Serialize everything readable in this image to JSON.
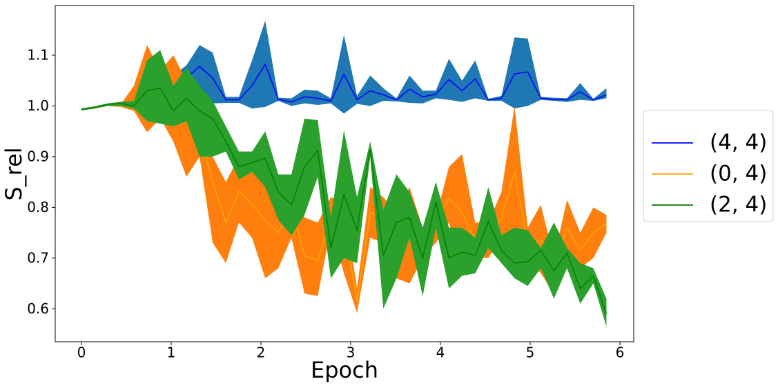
{
  "chart_data": {
    "type": "line_band",
    "xlabel": "Epoch",
    "ylabel": "S_rel",
    "x": [
      0,
      0.146,
      0.293,
      0.439,
      0.585,
      0.731,
      0.878,
      1.024,
      1.17,
      1.316,
      1.463,
      1.609,
      1.755,
      1.901,
      2.048,
      2.194,
      2.34,
      2.486,
      2.633,
      2.779,
      2.925,
      3.071,
      3.218,
      3.364,
      3.51,
      3.656,
      3.803,
      3.949,
      4.095,
      4.241,
      4.388,
      4.534,
      4.68,
      4.826,
      4.973,
      5.119,
      5.265,
      5.411,
      5.558,
      5.704,
      5.85
    ],
    "xlim": [
      -0.292,
      6.154
    ],
    "ylim": [
      0.535,
      1.198
    ],
    "xticks": [
      0,
      1,
      2,
      3,
      4,
      5,
      6
    ],
    "yticks": [
      0.6,
      0.7,
      0.8,
      0.9,
      {
        "value": 1,
        "label": "1.0"
      },
      1.1
    ],
    "legend": "right",
    "series": [
      {
        "name": "(4, 4)",
        "color": "#0000ff",
        "band_color": "#1f77b4",
        "values": [
          0.993,
          0.997,
          1.003,
          1.005,
          1.01,
          1.038,
          1.042,
          1.035,
          1.055,
          1.078,
          1.055,
          1.012,
          1.012,
          1.04,
          1.082,
          1.013,
          1.008,
          1.018,
          1.015,
          1.01,
          1.062,
          1.012,
          1.03,
          1.022,
          1.012,
          1.033,
          1.018,
          1.023,
          1.052,
          1.03,
          1.053,
          1.012,
          1.015,
          1.063,
          1.067,
          1.015,
          1.013,
          1.012,
          1.028,
          1.012,
          1.022
        ],
        "upper": [
          0.995,
          0.999,
          1.005,
          1.008,
          1.015,
          1.09,
          1.095,
          1.06,
          1.08,
          1.12,
          1.105,
          1.018,
          1.018,
          1.09,
          1.168,
          1.016,
          1.015,
          1.032,
          1.03,
          1.015,
          1.14,
          1.02,
          1.06,
          1.035,
          1.015,
          1.06,
          1.03,
          1.03,
          1.093,
          1.05,
          1.09,
          1.014,
          1.02,
          1.135,
          1.133,
          1.018,
          1.016,
          1.015,
          1.045,
          1.014,
          1.035
        ],
        "lower": [
          0.991,
          0.995,
          1.001,
          1.002,
          1.005,
          1.0,
          1.0,
          1.01,
          1.03,
          1.04,
          1.005,
          1.006,
          1.006,
          0.995,
          0.998,
          1.01,
          1.0,
          1.005,
          1.002,
          1.005,
          0.985,
          1.004,
          1.0,
          1.01,
          1.009,
          1.006,
          1.005,
          1.015,
          1.012,
          1.008,
          1.015,
          1.01,
          1.01,
          0.995,
          1.0,
          1.012,
          1.01,
          1.008,
          1.012,
          1.01,
          1.015
        ]
      },
      {
        "name": "(0, 4)",
        "color": "#ffa500",
        "band_color": "#ff7f0e",
        "values": [
          0.993,
          0.997,
          1.003,
          1.0,
          0.998,
          1.03,
          1.012,
          1.005,
          0.98,
          0.945,
          0.85,
          0.77,
          0.832,
          0.805,
          0.775,
          0.75,
          0.8,
          0.705,
          0.695,
          0.78,
          0.77,
          0.615,
          0.79,
          0.775,
          0.738,
          0.742,
          0.725,
          0.77,
          0.818,
          0.79,
          0.735,
          0.735,
          0.78,
          0.87,
          0.728,
          0.735,
          0.68,
          0.76,
          0.715,
          0.75,
          0.768
        ],
        "upper": [
          0.995,
          0.999,
          1.005,
          1.003,
          1.04,
          1.12,
          1.07,
          1.1,
          1.05,
          1.01,
          0.9,
          0.85,
          0.9,
          0.88,
          0.86,
          0.82,
          0.85,
          0.78,
          0.77,
          0.82,
          0.81,
          0.64,
          0.84,
          0.82,
          0.79,
          0.84,
          0.76,
          0.78,
          0.88,
          0.905,
          0.77,
          0.77,
          0.83,
          1.0,
          0.76,
          0.805,
          0.7,
          0.815,
          0.75,
          0.8,
          0.785
        ],
        "lower": [
          0.991,
          0.995,
          1.0,
          0.998,
          0.99,
          0.948,
          0.975,
          0.93,
          0.86,
          0.9,
          0.73,
          0.69,
          0.77,
          0.74,
          0.66,
          0.68,
          0.74,
          0.63,
          0.625,
          0.76,
          0.67,
          0.592,
          0.74,
          0.73,
          0.66,
          0.65,
          0.7,
          0.73,
          0.77,
          0.67,
          0.7,
          0.7,
          0.74,
          0.75,
          0.7,
          0.67,
          0.63,
          0.72,
          0.68,
          0.7,
          0.75
        ]
      },
      {
        "name": "(2, 4)",
        "color": "#008000",
        "band_color": "#2ca02c",
        "values": [
          0.993,
          0.997,
          1.003,
          1.005,
          1.0,
          1.03,
          1.035,
          0.99,
          1.015,
          0.99,
          0.975,
          0.93,
          0.88,
          0.888,
          0.897,
          0.83,
          0.805,
          0.88,
          0.912,
          0.72,
          0.825,
          0.755,
          0.915,
          0.705,
          0.77,
          0.78,
          0.7,
          0.81,
          0.7,
          0.712,
          0.705,
          0.772,
          0.715,
          0.69,
          0.693,
          0.715,
          0.675,
          0.71,
          0.64,
          0.665,
          0.59
        ],
        "upper": [
          0.995,
          0.999,
          1.005,
          1.008,
          1.01,
          1.09,
          1.11,
          1.04,
          1.075,
          1.04,
          1.01,
          0.96,
          0.91,
          0.91,
          0.95,
          0.865,
          0.865,
          0.975,
          0.972,
          0.78,
          0.952,
          0.82,
          0.93,
          0.795,
          0.865,
          0.83,
          0.76,
          0.85,
          0.76,
          0.76,
          0.74,
          0.84,
          0.745,
          0.76,
          0.755,
          0.72,
          0.77,
          0.72,
          0.69,
          0.68,
          0.62
        ],
        "lower": [
          0.991,
          0.995,
          1.0,
          1.0,
          0.995,
          0.97,
          0.965,
          0.96,
          0.97,
          0.9,
          0.9,
          0.91,
          0.855,
          0.87,
          0.84,
          0.775,
          0.745,
          0.785,
          0.86,
          0.66,
          0.7,
          0.69,
          0.9,
          0.6,
          0.66,
          0.74,
          0.625,
          0.76,
          0.64,
          0.665,
          0.67,
          0.72,
          0.69,
          0.66,
          0.645,
          0.68,
          0.62,
          0.68,
          0.61,
          0.65,
          0.565
        ]
      }
    ]
  }
}
